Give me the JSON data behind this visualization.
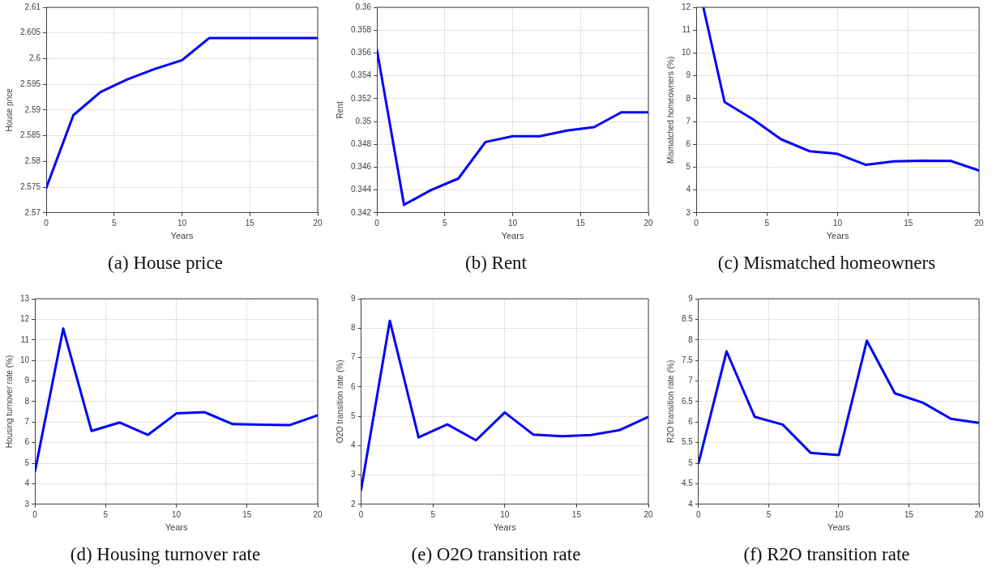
{
  "chart_data": [
    {
      "type": "line",
      "title": "(a) House price",
      "xlabel": "Years",
      "ylabel": "House price",
      "x": [
        0,
        2,
        4,
        6,
        8,
        10,
        12,
        20
      ],
      "series": [
        {
          "color": "#0000ff",
          "values": [
            2.5748,
            2.589,
            2.5935,
            2.596,
            2.598,
            2.5997,
            2.604,
            2.604
          ]
        }
      ],
      "xlim": [
        0,
        20
      ],
      "xticks": [
        0,
        5,
        10,
        15,
        20
      ],
      "ylim": [
        2.57,
        2.61
      ],
      "yticks": [
        2.57,
        2.575,
        2.58,
        2.585,
        2.59,
        2.595,
        2.6,
        2.605,
        2.61
      ],
      "grid": true,
      "legend": false,
      "marker": "none",
      "line_style": "solid"
    },
    {
      "type": "line",
      "title": "(b) Rent",
      "xlabel": "Years",
      "ylabel": "Rent",
      "x": [
        0,
        2,
        4,
        6,
        8,
        10,
        12,
        14,
        16,
        18,
        20
      ],
      "series": [
        {
          "color": "#0000ff",
          "values": [
            0.3563,
            0.3427,
            0.344,
            0.345,
            0.3482,
            0.3487,
            0.3487,
            0.3492,
            0.3495,
            0.3508,
            0.3508
          ]
        }
      ],
      "xlim": [
        0,
        20
      ],
      "xticks": [
        0,
        5,
        10,
        15,
        20
      ],
      "ylim": [
        0.342,
        0.36
      ],
      "yticks": [
        0.342,
        0.344,
        0.346,
        0.348,
        0.35,
        0.352,
        0.354,
        0.356,
        0.358,
        0.36
      ],
      "grid": true,
      "legend": false,
      "marker": "none",
      "line_style": "solid"
    },
    {
      "type": "line",
      "title": "(c) Mismatched homeowners",
      "xlabel": "Years",
      "ylabel": "Mismatched homeowners (%)",
      "x": [
        0.5,
        2,
        4,
        6,
        8,
        10,
        12,
        14,
        16,
        18,
        20
      ],
      "series": [
        {
          "color": "#0000ff",
          "values": [
            12,
            7.85,
            7.1,
            6.22,
            5.7,
            5.58,
            5.1,
            5.25,
            5.28,
            5.27,
            4.85
          ]
        }
      ],
      "xlim": [
        0,
        20
      ],
      "xticks": [
        0,
        5,
        10,
        15,
        20
      ],
      "ylim": [
        3,
        12
      ],
      "yticks": [
        3,
        4,
        5,
        6,
        7,
        8,
        9,
        10,
        11,
        12
      ],
      "grid": true,
      "legend": false,
      "marker": "none",
      "line_style": "solid"
    },
    {
      "type": "line",
      "title": "(d) Housing turnover rate",
      "xlabel": "Years",
      "ylabel": "Housing turnover rate (%)",
      "x": [
        0,
        2,
        4,
        6,
        8,
        10,
        12,
        14,
        16,
        18,
        20
      ],
      "series": [
        {
          "color": "#0000ff",
          "values": [
            4.6,
            11.55,
            6.57,
            6.98,
            6.38,
            7.42,
            7.48,
            6.9,
            6.87,
            6.85,
            7.33
          ]
        }
      ],
      "xlim": [
        0,
        20
      ],
      "xticks": [
        0,
        5,
        10,
        15,
        20
      ],
      "ylim": [
        3,
        13
      ],
      "yticks": [
        3,
        4,
        5,
        6,
        7,
        8,
        9,
        10,
        11,
        12,
        13
      ],
      "grid": true,
      "legend": false,
      "marker": "none",
      "line_style": "solid"
    },
    {
      "type": "line",
      "title": "(e) O2O transition rate",
      "xlabel": "Years",
      "ylabel": "O2O transition rate (%)",
      "x": [
        0,
        2,
        4,
        6,
        8,
        10,
        12,
        14,
        16,
        18,
        20
      ],
      "series": [
        {
          "color": "#0000ff",
          "values": [
            2.5,
            8.25,
            4.28,
            4.72,
            4.18,
            5.13,
            4.37,
            4.32,
            4.36,
            4.53,
            4.98
          ]
        }
      ],
      "xlim": [
        0,
        20
      ],
      "xticks": [
        0,
        5,
        10,
        15,
        20
      ],
      "ylim": [
        2,
        9
      ],
      "yticks": [
        2,
        3,
        4,
        5,
        6,
        7,
        8,
        9
      ],
      "grid": true,
      "legend": false,
      "marker": "none",
      "line_style": "solid"
    },
    {
      "type": "line",
      "title": "(f) R2O transition rate",
      "xlabel": "Years",
      "ylabel": "R2O transition rate (%)",
      "x": [
        0,
        2,
        4,
        6,
        8,
        10,
        12,
        14,
        16,
        18,
        20
      ],
      "series": [
        {
          "color": "#0000ff",
          "values": [
            5.0,
            7.72,
            6.13,
            5.94,
            5.25,
            5.2,
            7.98,
            6.7,
            6.47,
            6.08,
            5.98
          ]
        }
      ],
      "xlim": [
        0,
        20
      ],
      "xticks": [
        0,
        5,
        10,
        15,
        20
      ],
      "ylim": [
        4,
        9
      ],
      "yticks": [
        4,
        4.5,
        5,
        5.5,
        6,
        6.5,
        7,
        7.5,
        8,
        8.5,
        9
      ],
      "grid": true,
      "legend": false,
      "marker": "none",
      "line_style": "solid"
    }
  ]
}
